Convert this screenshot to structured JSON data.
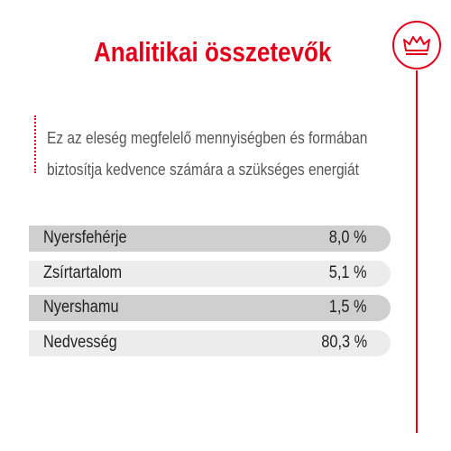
{
  "header": {
    "title": "Analitikai összetevők"
  },
  "description": {
    "lines": [
      "Ez az eleség megfelelő mennyiségben és formában",
      "biztosítja kedvence számára a szükséges energiát"
    ]
  },
  "table": {
    "rows": [
      [
        "Nyersfehérje",
        "8,0 %"
      ],
      [
        "Zsírtartalom",
        "5,1 %"
      ],
      [
        "Nyershamu",
        "1,5 %"
      ],
      [
        "Nedvesség",
        "80,3 %"
      ]
    ]
  }
}
